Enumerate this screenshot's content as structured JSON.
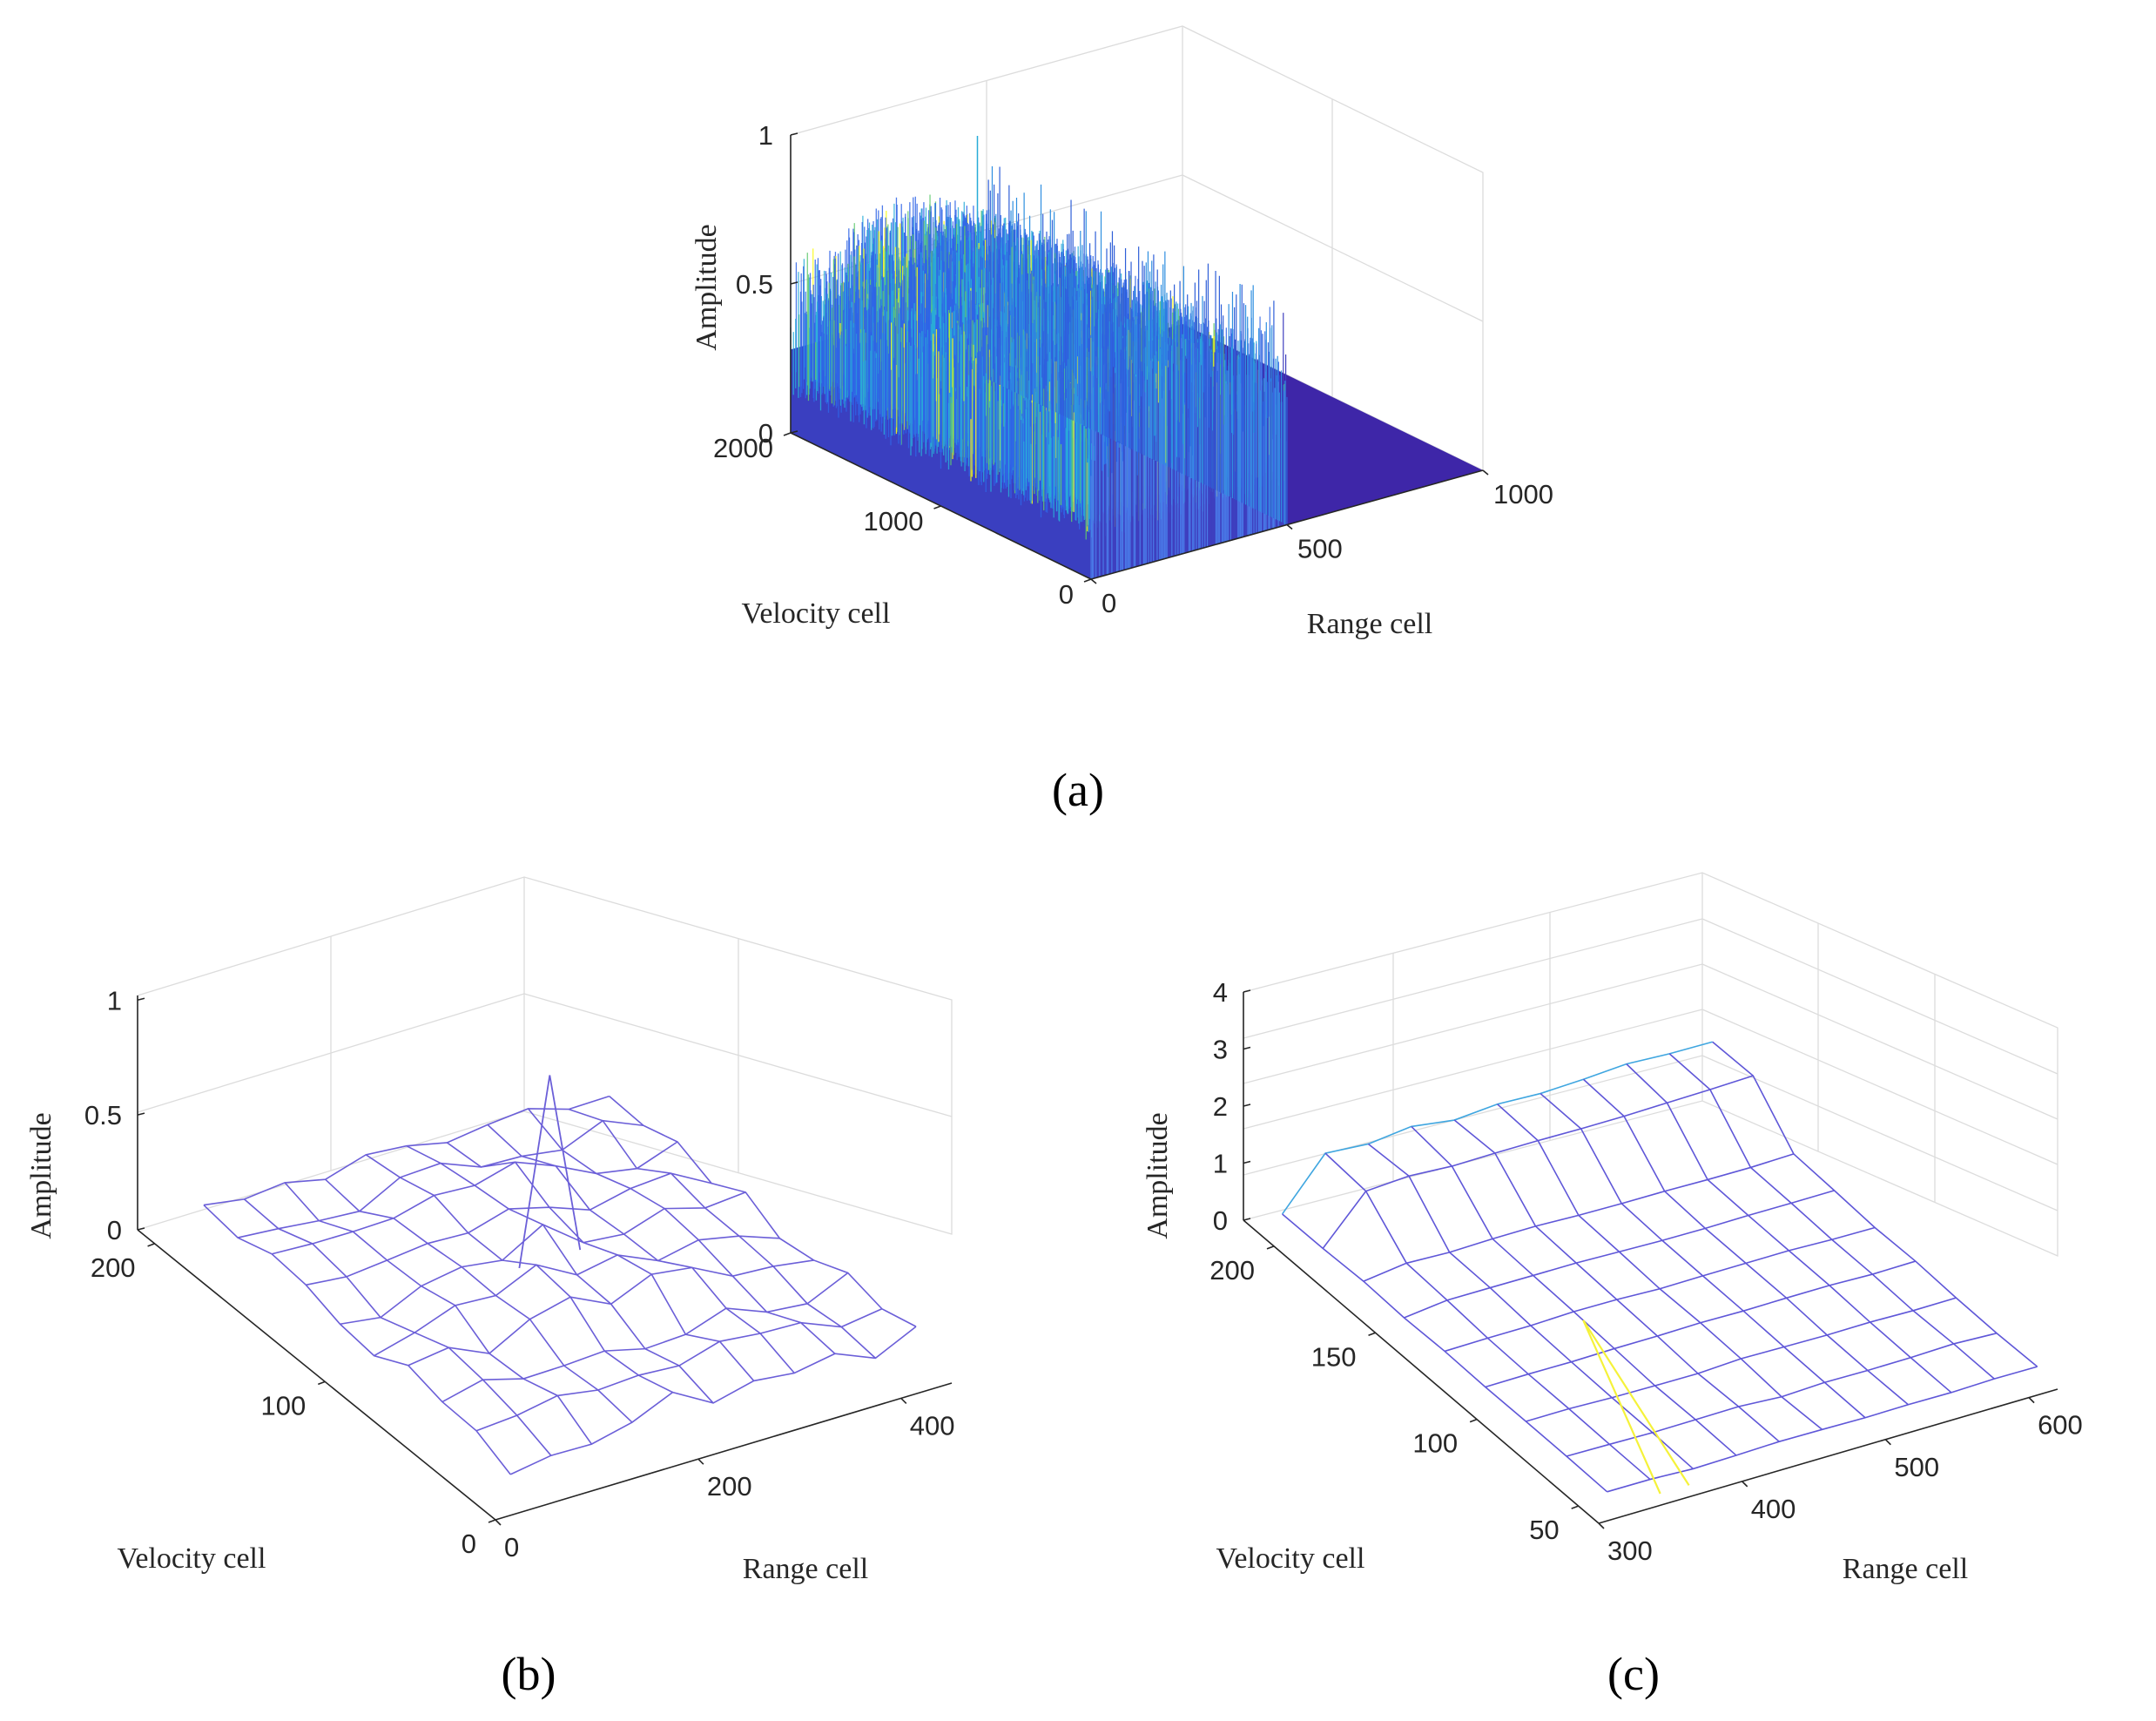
{
  "chart_data": [
    {
      "type": "surface",
      "panel_label": "(a)",
      "xlabel": "Range cell",
      "ylabel": "Velocity cell",
      "zlabel": "Amplitude",
      "x_ticks": [
        "0",
        "500",
        "1000"
      ],
      "y_ticks": [
        "0",
        "1000",
        "2000"
      ],
      "z_ticks": [
        "0",
        "0.5",
        "1"
      ],
      "xlim": [
        0,
        1000
      ],
      "ylim": [
        0,
        2000
      ],
      "zlim": [
        0,
        1
      ],
      "description_values": {
        "range_cells_with_signal_max": 500,
        "typical_noise_amplitude_peak": 0.75,
        "max_amplitude": 0.9
      },
      "colormap": [
        "#3e26a8",
        "#2f64e6",
        "#29abd8",
        "#60c96e",
        "#f9fb15"
      ]
    },
    {
      "type": "surface",
      "panel_label": "(b)",
      "xlabel": "Range cell",
      "ylabel": "Velocity cell",
      "zlabel": "Amplitude",
      "x_ticks": [
        "0",
        "200",
        "400"
      ],
      "y_ticks": [
        "0",
        "100",
        "200"
      ],
      "z_ticks": [
        "0",
        "0.5",
        "1"
      ],
      "xlim": [
        0,
        450
      ],
      "ylim": [
        0,
        210
      ],
      "zlim": [
        0,
        1
      ],
      "peak": {
        "range": 230,
        "velocity": 105,
        "amplitude": 1.0
      },
      "line_color": "#6b5fd8"
    },
    {
      "type": "surface",
      "panel_label": "(c)",
      "xlabel": "Range cell",
      "ylabel": "Velocity cell",
      "zlabel": "Amplitude",
      "x_ticks": [
        "300",
        "400",
        "500",
        "600"
      ],
      "y_ticks": [
        "50",
        "100",
        "150",
        "200"
      ],
      "z_ticks": [
        "0",
        "1",
        "2",
        "3",
        "4"
      ],
      "xlim": [
        300,
        620
      ],
      "ylim": [
        40,
        215
      ],
      "zlim": [
        0,
        4
      ],
      "peak": {
        "range": 360,
        "velocity": 90,
        "amplitude": 1.6
      },
      "line_color": "#5f57d8",
      "peak_color": "#f5f23a"
    }
  ]
}
